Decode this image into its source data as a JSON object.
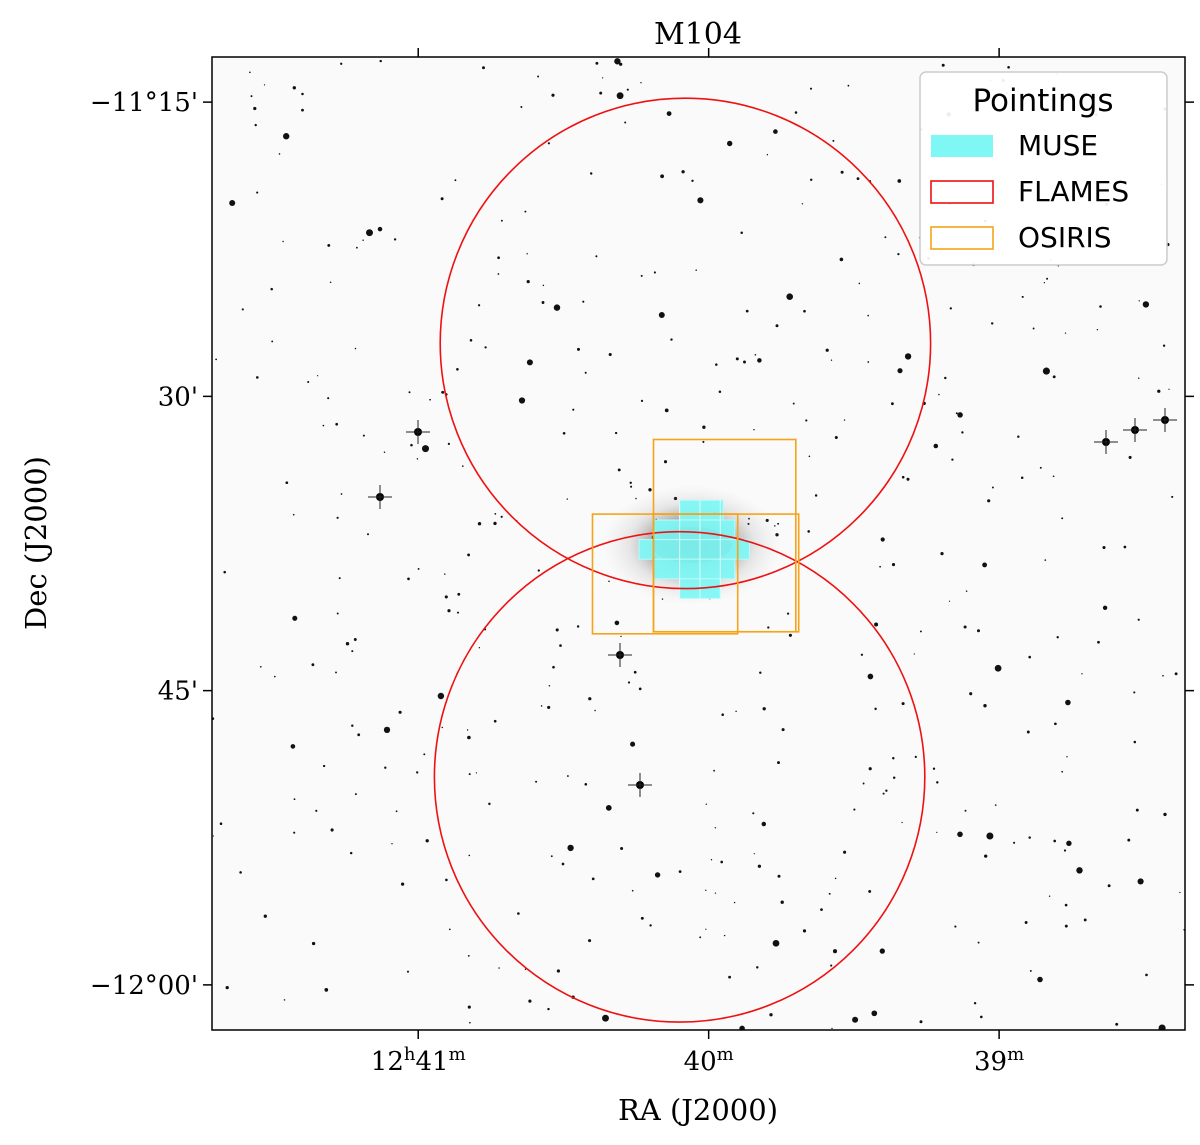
{
  "chart_data": {
    "type": "scatter",
    "title": "M104",
    "xlabel": "RA (J2000)",
    "ylabel": "Dec (J2000)",
    "x_axis": {
      "units": "minutes of RA (relative to 12h39m)",
      "range": [
        2.71,
        -0.64
      ],
      "ticks": [
        {
          "value": 2.0,
          "h": "12",
          "hsup": "h",
          "m": "41",
          "msup": "m"
        },
        {
          "value": 1.0,
          "h": "",
          "hsup": "",
          "m": "40",
          "msup": "m"
        },
        {
          "value": 0.0,
          "h": "",
          "hsup": "",
          "m": "39",
          "msup": "m"
        }
      ]
    },
    "y_axis": {
      "units": "arcmin south of -11°00'",
      "range": [
        12.7,
        62.3
      ],
      "ticks": [
        {
          "value": 15,
          "label": "−11°15'"
        },
        {
          "value": 30,
          "label": "30'"
        },
        {
          "value": 45,
          "label": "45'"
        },
        {
          "value": 60,
          "label": "−12°00'"
        }
      ]
    },
    "legend": {
      "title": "Pointings",
      "position": "top-right",
      "entries": [
        {
          "label": "MUSE",
          "color": "#7ff7f4",
          "style": "filled"
        },
        {
          "label": "FLAMES",
          "color": "#ee1111",
          "style": "outline"
        },
        {
          "label": "OSIRIS",
          "color": "#f5a31a",
          "style": "outline"
        }
      ]
    },
    "series": [
      {
        "name": "FLAMES",
        "shape": "circle",
        "color": "#ee1111",
        "pointings": [
          {
            "ra_min": 1.08,
            "dec_arcmin": 27.3,
            "radius_arcmin": 12.5
          },
          {
            "ra_min": 1.1,
            "dec_arcmin": 49.4,
            "radius_arcmin": 12.5
          }
        ]
      },
      {
        "name": "OSIRIS",
        "shape": "rectangle",
        "color": "#f5a31a",
        "pointings": [
          {
            "ra_min": [
              1.19,
              0.7
            ],
            "dec_arcmin": [
              32.2,
              42.0
            ]
          },
          {
            "ra_min": [
              1.4,
              0.9
            ],
            "dec_arcmin": [
              36.0,
              42.1
            ]
          },
          {
            "ra_min": [
              1.19,
              0.69
            ],
            "dec_arcmin": [
              36.0,
              42.0
            ]
          }
        ]
      },
      {
        "name": "MUSE",
        "shape": "rectangle",
        "color": "#7ff7f4",
        "pointings": [
          {
            "ra_min": [
              1.1,
              0.95
            ],
            "dec_arcmin": [
              35.3,
              36.3
            ]
          },
          {
            "ra_min": [
              1.19,
              0.91
            ],
            "dec_arcmin": [
              36.3,
              37.3
            ]
          },
          {
            "ra_min": [
              1.24,
              0.86
            ],
            "dec_arcmin": [
              37.3,
              38.3
            ]
          },
          {
            "ra_min": [
              1.19,
              0.91
            ],
            "dec_arcmin": [
              38.3,
              39.3
            ]
          },
          {
            "ra_min": [
              1.1,
              0.96
            ],
            "dec_arcmin": [
              39.3,
              40.3
            ]
          }
        ]
      }
    ]
  }
}
